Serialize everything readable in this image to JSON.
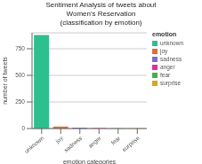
{
  "chart_data": {
    "type": "bar",
    "title": "Sentiment Analysis of tweets about\nWomen's Reservation\n(classification by emotion)",
    "xlabel": "emotion categories",
    "ylabel": "number of tweets",
    "categories": [
      "unknown",
      "joy",
      "sadness",
      "anger",
      "fear",
      "surprise"
    ],
    "values": [
      880,
      18,
      8,
      4,
      3,
      2
    ],
    "colors": [
      "#2dbf8e",
      "#e07030",
      "#7b6fc4",
      "#e0309e",
      "#4aaf4a",
      "#d4a820"
    ],
    "legend_title": "emotion",
    "legend": "right",
    "ylim": [
      0,
      900
    ],
    "yticks": [
      0,
      250,
      500,
      750
    ],
    "grid": true
  }
}
